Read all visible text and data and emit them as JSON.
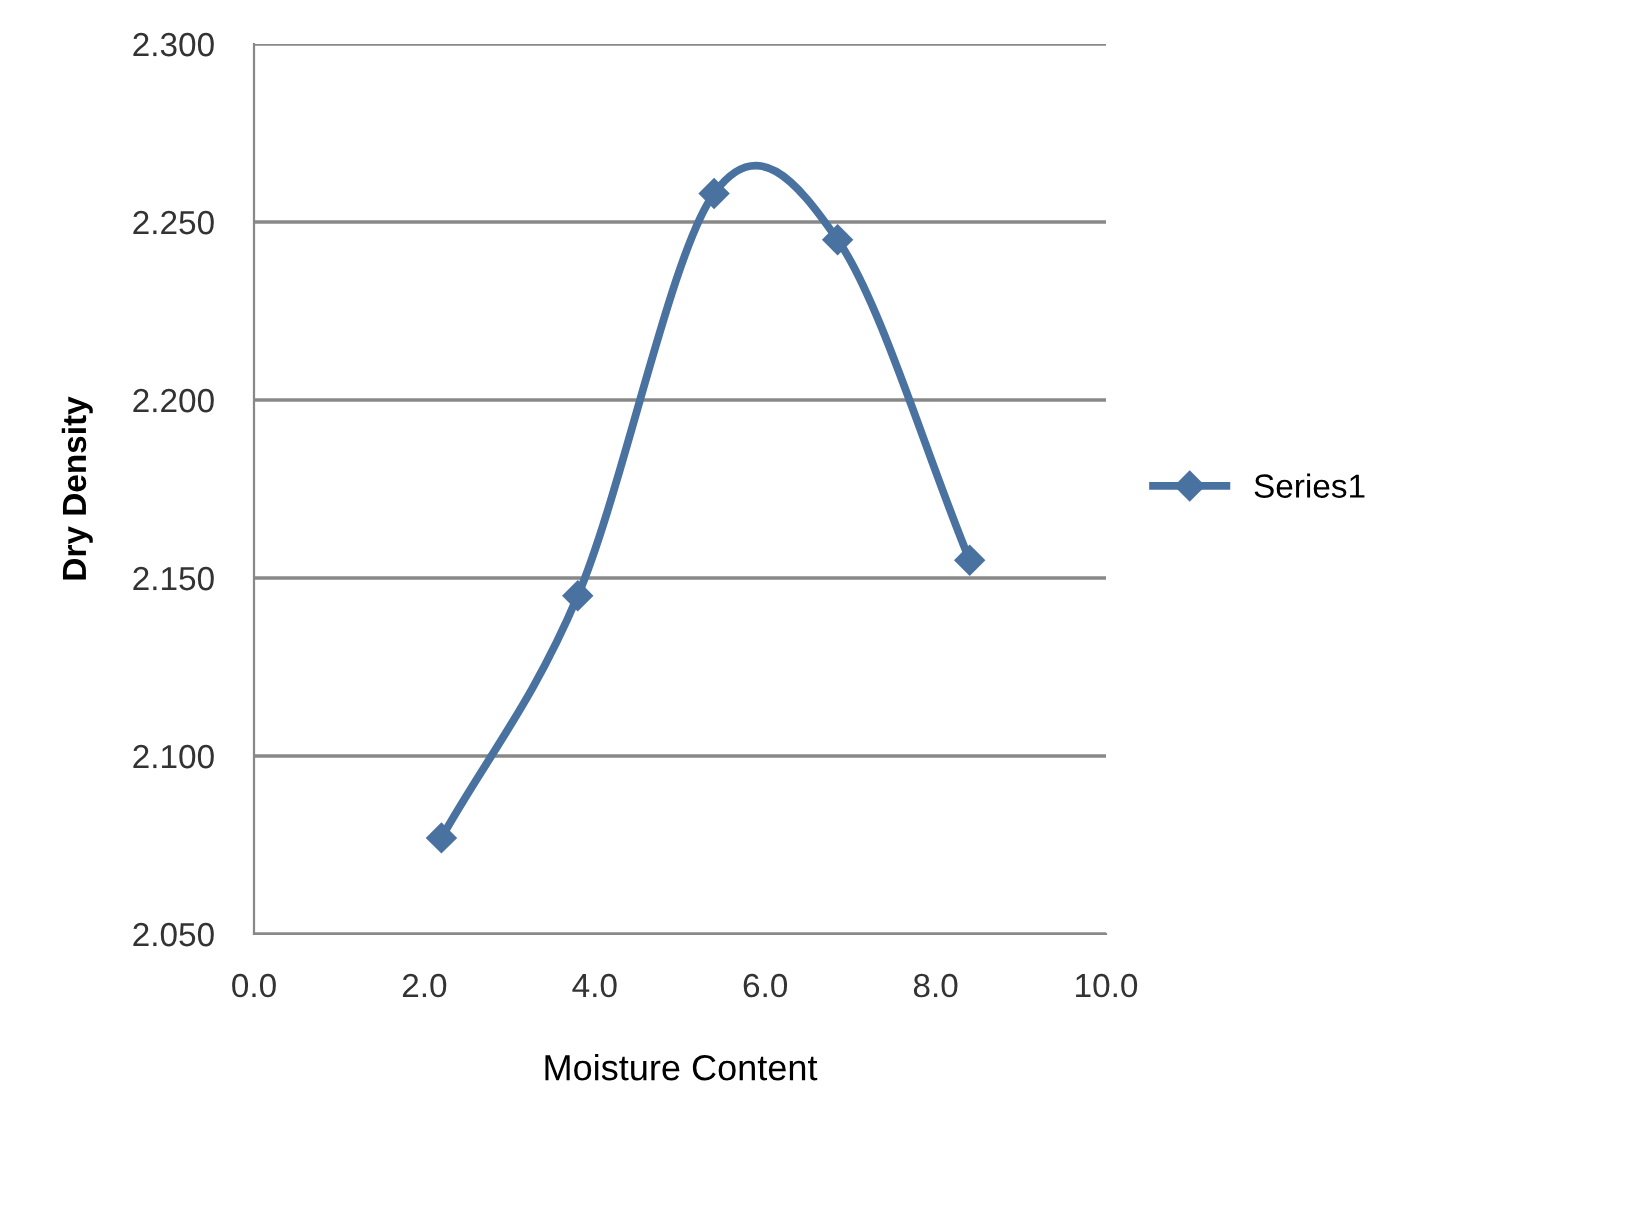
{
  "chart_data": {
    "type": "line",
    "xlabel": "Moisture Content",
    "ylabel": "Dry Density",
    "x": [
      2.2,
      3.8,
      5.4,
      6.85,
      8.4
    ],
    "series": [
      {
        "name": "Series1",
        "color": "#4a72a0",
        "values": [
          2.077,
          2.145,
          2.258,
          2.245,
          2.155
        ]
      }
    ],
    "xlim": [
      0,
      10
    ],
    "xticks": [
      {
        "value": 0,
        "label": "0.0"
      },
      {
        "value": 2,
        "label": "2.0"
      },
      {
        "value": 4,
        "label": "4.0"
      },
      {
        "value": 6,
        "label": "6.0"
      },
      {
        "value": 8,
        "label": "8.0"
      },
      {
        "value": 10,
        "label": "10.0"
      }
    ],
    "ylim": [
      2.05,
      2.3
    ],
    "yticks": [
      {
        "value": 2.05,
        "label": "2.050"
      },
      {
        "value": 2.1,
        "label": "2.100"
      },
      {
        "value": 2.15,
        "label": "2.150"
      },
      {
        "value": 2.2,
        "label": "2.200"
      },
      {
        "value": 2.25,
        "label": "2.250"
      },
      {
        "value": 2.3,
        "label": "2.300"
      }
    ],
    "grid": "y",
    "legend": "right",
    "marker": "diamond",
    "line_style": "solid"
  }
}
